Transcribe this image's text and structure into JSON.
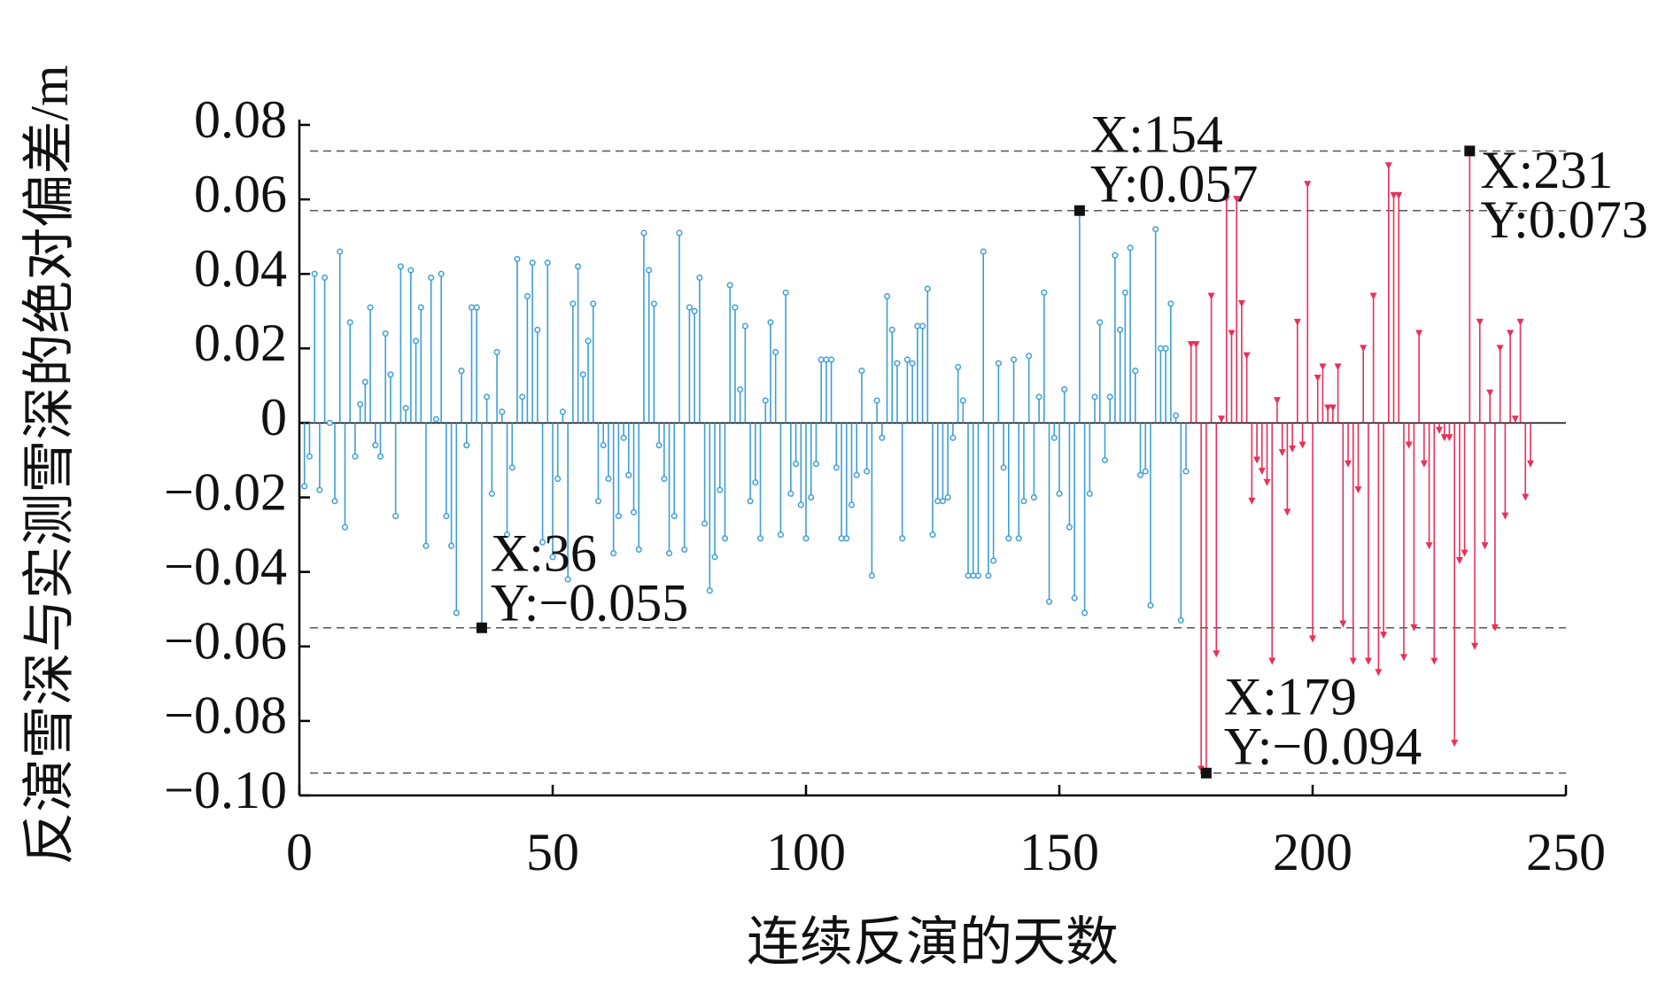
{
  "chart_data": {
    "type": "stem",
    "xlabel": "连续反演的天数",
    "ylabel": "反演雪深与实测雪深的绝对偏差/m",
    "xlim": [
      0,
      250
    ],
    "xticks": [
      0,
      50,
      100,
      150,
      200,
      250
    ],
    "ylim": [
      -0.1,
      0.08
    ],
    "yticks": [
      {
        "value": -0.1,
        "label": "−0.10"
      },
      {
        "value": -0.08,
        "label": "−0.08"
      },
      {
        "value": -0.06,
        "label": "−0.06"
      },
      {
        "value": -0.04,
        "label": "−0.04"
      },
      {
        "value": -0.02,
        "label": "−0.02"
      },
      0,
      0.02,
      0.04,
      0.06,
      0.08
    ],
    "series": [
      {
        "color": "#3d9fd6",
        "marker": "circle",
        "x": [
          1,
          2,
          3,
          4,
          5,
          6,
          7,
          8,
          9,
          10,
          11,
          12,
          13,
          14,
          15,
          16,
          17,
          18,
          19,
          20,
          21,
          22,
          23,
          24,
          25,
          26,
          27,
          28,
          29,
          30,
          31,
          32,
          33,
          34,
          35,
          36,
          37,
          38,
          39,
          40,
          41,
          42,
          43,
          44,
          45,
          46,
          47,
          48,
          49,
          50,
          51,
          52,
          53,
          54,
          55,
          56,
          57,
          58,
          59,
          60,
          61,
          62,
          63,
          64,
          65,
          66,
          67,
          68,
          69,
          70,
          71,
          72,
          73,
          74,
          75,
          76,
          77,
          78,
          79,
          80,
          81,
          82,
          83,
          84,
          85,
          86,
          87,
          88,
          89,
          90,
          91,
          92,
          93,
          94,
          95,
          96,
          97,
          98,
          99,
          100,
          101,
          102,
          103,
          104,
          105,
          106,
          107,
          108,
          109,
          110,
          111,
          112,
          113,
          114,
          115,
          116,
          117,
          118,
          119,
          120,
          121,
          122,
          123,
          124,
          125,
          126,
          127,
          128,
          129,
          130,
          131,
          132,
          133,
          134,
          135,
          136,
          137,
          138,
          139,
          140,
          141,
          142,
          143,
          144,
          145,
          146,
          147,
          148,
          149,
          150,
          151,
          152,
          153,
          154,
          155,
          156,
          157,
          158,
          159,
          160,
          161,
          162,
          163,
          164,
          165,
          166,
          167,
          168,
          169,
          170,
          171,
          172,
          173,
          174,
          175
        ],
        "values": [
          -0.017,
          -0.009,
          0.04,
          -0.018,
          0.039,
          0.0,
          -0.021,
          0.046,
          -0.028,
          0.027,
          -0.009,
          0.005,
          0.011,
          0.031,
          -0.006,
          -0.009,
          0.024,
          0.013,
          -0.025,
          0.042,
          0.004,
          0.041,
          0.022,
          0.031,
          -0.033,
          0.039,
          0.001,
          0.04,
          -0.025,
          -0.033,
          -0.051,
          0.014,
          -0.006,
          0.031,
          0.031,
          -0.055,
          0.007,
          -0.019,
          0.019,
          0.003,
          -0.03,
          -0.012,
          0.044,
          0.007,
          0.034,
          0.043,
          0.025,
          -0.032,
          0.043,
          -0.036,
          -0.015,
          0.003,
          -0.042,
          0.032,
          0.042,
          0.013,
          0.022,
          0.032,
          -0.021,
          -0.006,
          -0.015,
          -0.035,
          -0.025,
          -0.004,
          -0.014,
          -0.024,
          -0.034,
          0.051,
          0.041,
          0.032,
          -0.006,
          -0.015,
          -0.035,
          -0.025,
          0.051,
          -0.034,
          0.031,
          0.03,
          0.039,
          -0.027,
          -0.045,
          -0.036,
          -0.018,
          -0.031,
          0.037,
          0.031,
          0.009,
          0.026,
          -0.021,
          -0.016,
          -0.031,
          0.006,
          0.027,
          0.019,
          -0.03,
          0.035,
          -0.019,
          -0.011,
          -0.022,
          -0.031,
          -0.02,
          -0.011,
          0.017,
          0.017,
          0.017,
          -0.012,
          -0.031,
          -0.031,
          -0.022,
          -0.014,
          0.014,
          -0.013,
          -0.041,
          0.006,
          -0.004,
          0.034,
          0.025,
          0.016,
          -0.031,
          0.017,
          0.016,
          0.026,
          0.026,
          0.036,
          -0.03,
          -0.021,
          -0.021,
          -0.02,
          -0.004,
          0.015,
          0.006,
          -0.041,
          -0.041,
          -0.041,
          0.046,
          -0.041,
          -0.037,
          0.016,
          -0.012,
          -0.031,
          0.017,
          -0.031,
          -0.021,
          0.018,
          -0.02,
          0.007,
          0.035,
          -0.048,
          -0.004,
          -0.019,
          0.009,
          -0.028,
          -0.047,
          0.057,
          -0.051,
          -0.019,
          0.007,
          0.027,
          -0.01,
          0.007,
          0.045,
          0.025,
          0.035,
          0.047,
          0.014,
          -0.014,
          -0.013,
          -0.049,
          0.052,
          0.02,
          0.02,
          0.032,
          0.002,
          -0.053,
          -0.013
        ]
      },
      {
        "color": "#e8305a",
        "marker": "triangle",
        "x": [
          176,
          177,
          178,
          179,
          180,
          181,
          182,
          183,
          184,
          185,
          186,
          187,
          188,
          189,
          190,
          191,
          192,
          193,
          194,
          195,
          196,
          197,
          198,
          199,
          200,
          201,
          202,
          203,
          204,
          205,
          206,
          207,
          208,
          209,
          210,
          211,
          212,
          213,
          214,
          215,
          216,
          217,
          218,
          219,
          220,
          221,
          222,
          223,
          224,
          225,
          226,
          227,
          228,
          229,
          230,
          231,
          232,
          233,
          234,
          235,
          236,
          237,
          238,
          239,
          240,
          241,
          242,
          243
        ],
        "values": [
          0.021,
          0.021,
          -0.093,
          -0.094,
          0.034,
          -0.062,
          0.001,
          0.06,
          0.024,
          0.06,
          0.032,
          0.018,
          -0.021,
          -0.01,
          -0.013,
          -0.016,
          -0.064,
          0.006,
          -0.008,
          -0.024,
          -0.007,
          0.027,
          -0.006,
          0.064,
          -0.058,
          0.012,
          0.015,
          0.004,
          0.004,
          0.015,
          -0.054,
          -0.011,
          -0.064,
          -0.018,
          0.02,
          -0.064,
          0.034,
          -0.067,
          -0.057,
          0.069,
          0.061,
          0.061,
          -0.063,
          -0.006,
          -0.055,
          0.024,
          -0.011,
          -0.033,
          -0.064,
          -0.002,
          -0.004,
          -0.004,
          -0.086,
          -0.037,
          -0.035,
          0.073,
          -0.06,
          0.027,
          -0.033,
          0.008,
          -0.055,
          0.02,
          -0.025,
          0.024,
          0.001,
          0.027,
          -0.02,
          -0.011
        ]
      }
    ],
    "annotations": [
      {
        "x": 36,
        "y": -0.055,
        "labels": [
          "X:36",
          "Y:−0.055"
        ]
      },
      {
        "x": 154,
        "y": 0.057,
        "labels": [
          "X:154",
          "Y:0.057"
        ]
      },
      {
        "x": 179,
        "y": -0.094,
        "labels": [
          "X:179",
          "Y:−0.094"
        ]
      },
      {
        "x": 231,
        "y": 0.073,
        "labels": [
          "X:231",
          "Y:0.073"
        ]
      }
    ]
  }
}
